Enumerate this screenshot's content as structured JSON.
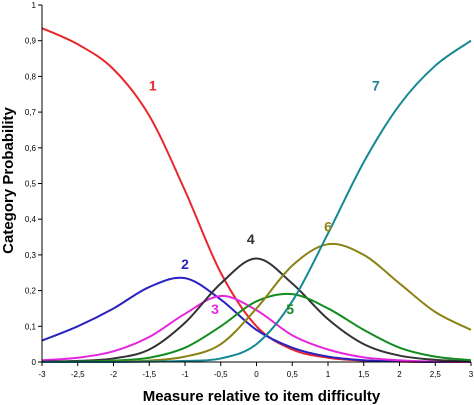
{
  "chart_data": {
    "type": "line",
    "xlabel": "Measure relative to item difficulty",
    "ylabel": "Category Probability",
    "xlim": [
      -3,
      3
    ],
    "ylim": [
      0,
      1
    ],
    "x_ticks": [
      "-3",
      "-2,5",
      "-2",
      "-1,5",
      "-1",
      "-0,5",
      "0",
      "0,5",
      "1",
      "1,5",
      "2",
      "2,5",
      "3"
    ],
    "y_ticks": [
      "0",
      "0,1",
      "0,2",
      "0,3",
      "0,4",
      "0,5",
      "0,6",
      "0,7",
      "0,8",
      "0,9",
      "1"
    ],
    "grid": false,
    "legend": "none",
    "x": [
      -3,
      -2.5,
      -2,
      -1.5,
      -1,
      -0.5,
      0,
      0.5,
      1,
      1.5,
      2,
      2.5,
      3
    ],
    "series": [
      {
        "name": "1",
        "color": "#e8262b",
        "label_at": [
          -1.45,
          0.76
        ],
        "values": [
          0.935,
          0.89,
          0.82,
          0.69,
          0.48,
          0.25,
          0.1,
          0.035,
          0.012,
          0.004,
          0.001,
          0.0,
          0.0
        ]
      },
      {
        "name": "2",
        "color": "#2a22c2",
        "label_at": [
          -1.0,
          0.26
        ],
        "values": [
          0.06,
          0.1,
          0.15,
          0.21,
          0.235,
          0.175,
          0.09,
          0.04,
          0.015,
          0.005,
          0.002,
          0.0,
          0.0
        ]
      },
      {
        "name": "3",
        "color": "#e626de",
        "label_at": [
          -0.58,
          0.135
        ],
        "values": [
          0.005,
          0.012,
          0.03,
          0.07,
          0.135,
          0.185,
          0.145,
          0.075,
          0.035,
          0.013,
          0.005,
          0.001,
          0.0
        ]
      },
      {
        "name": "4",
        "color": "#333333",
        "label_at": [
          -0.08,
          0.33
        ],
        "values": [
          0.001,
          0.003,
          0.01,
          0.035,
          0.11,
          0.22,
          0.29,
          0.22,
          0.12,
          0.05,
          0.018,
          0.006,
          0.002
        ]
      },
      {
        "name": "5",
        "color": "#128c1e",
        "label_at": [
          0.47,
          0.135
        ],
        "values": [
          0.0,
          0.001,
          0.004,
          0.012,
          0.04,
          0.1,
          0.17,
          0.19,
          0.15,
          0.09,
          0.04,
          0.015,
          0.005
        ]
      },
      {
        "name": "6",
        "color": "#8c8214",
        "label_at": [
          1.0,
          0.365
        ],
        "values": [
          0.0,
          0.0,
          0.001,
          0.004,
          0.015,
          0.05,
          0.15,
          0.27,
          0.33,
          0.3,
          0.22,
          0.14,
          0.09
        ]
      },
      {
        "name": "7",
        "color": "#168894",
        "label_at": [
          1.67,
          0.76
        ],
        "values": [
          0.0,
          0.0,
          0.0,
          0.001,
          0.003,
          0.01,
          0.05,
          0.17,
          0.36,
          0.56,
          0.72,
          0.83,
          0.9
        ]
      }
    ]
  }
}
